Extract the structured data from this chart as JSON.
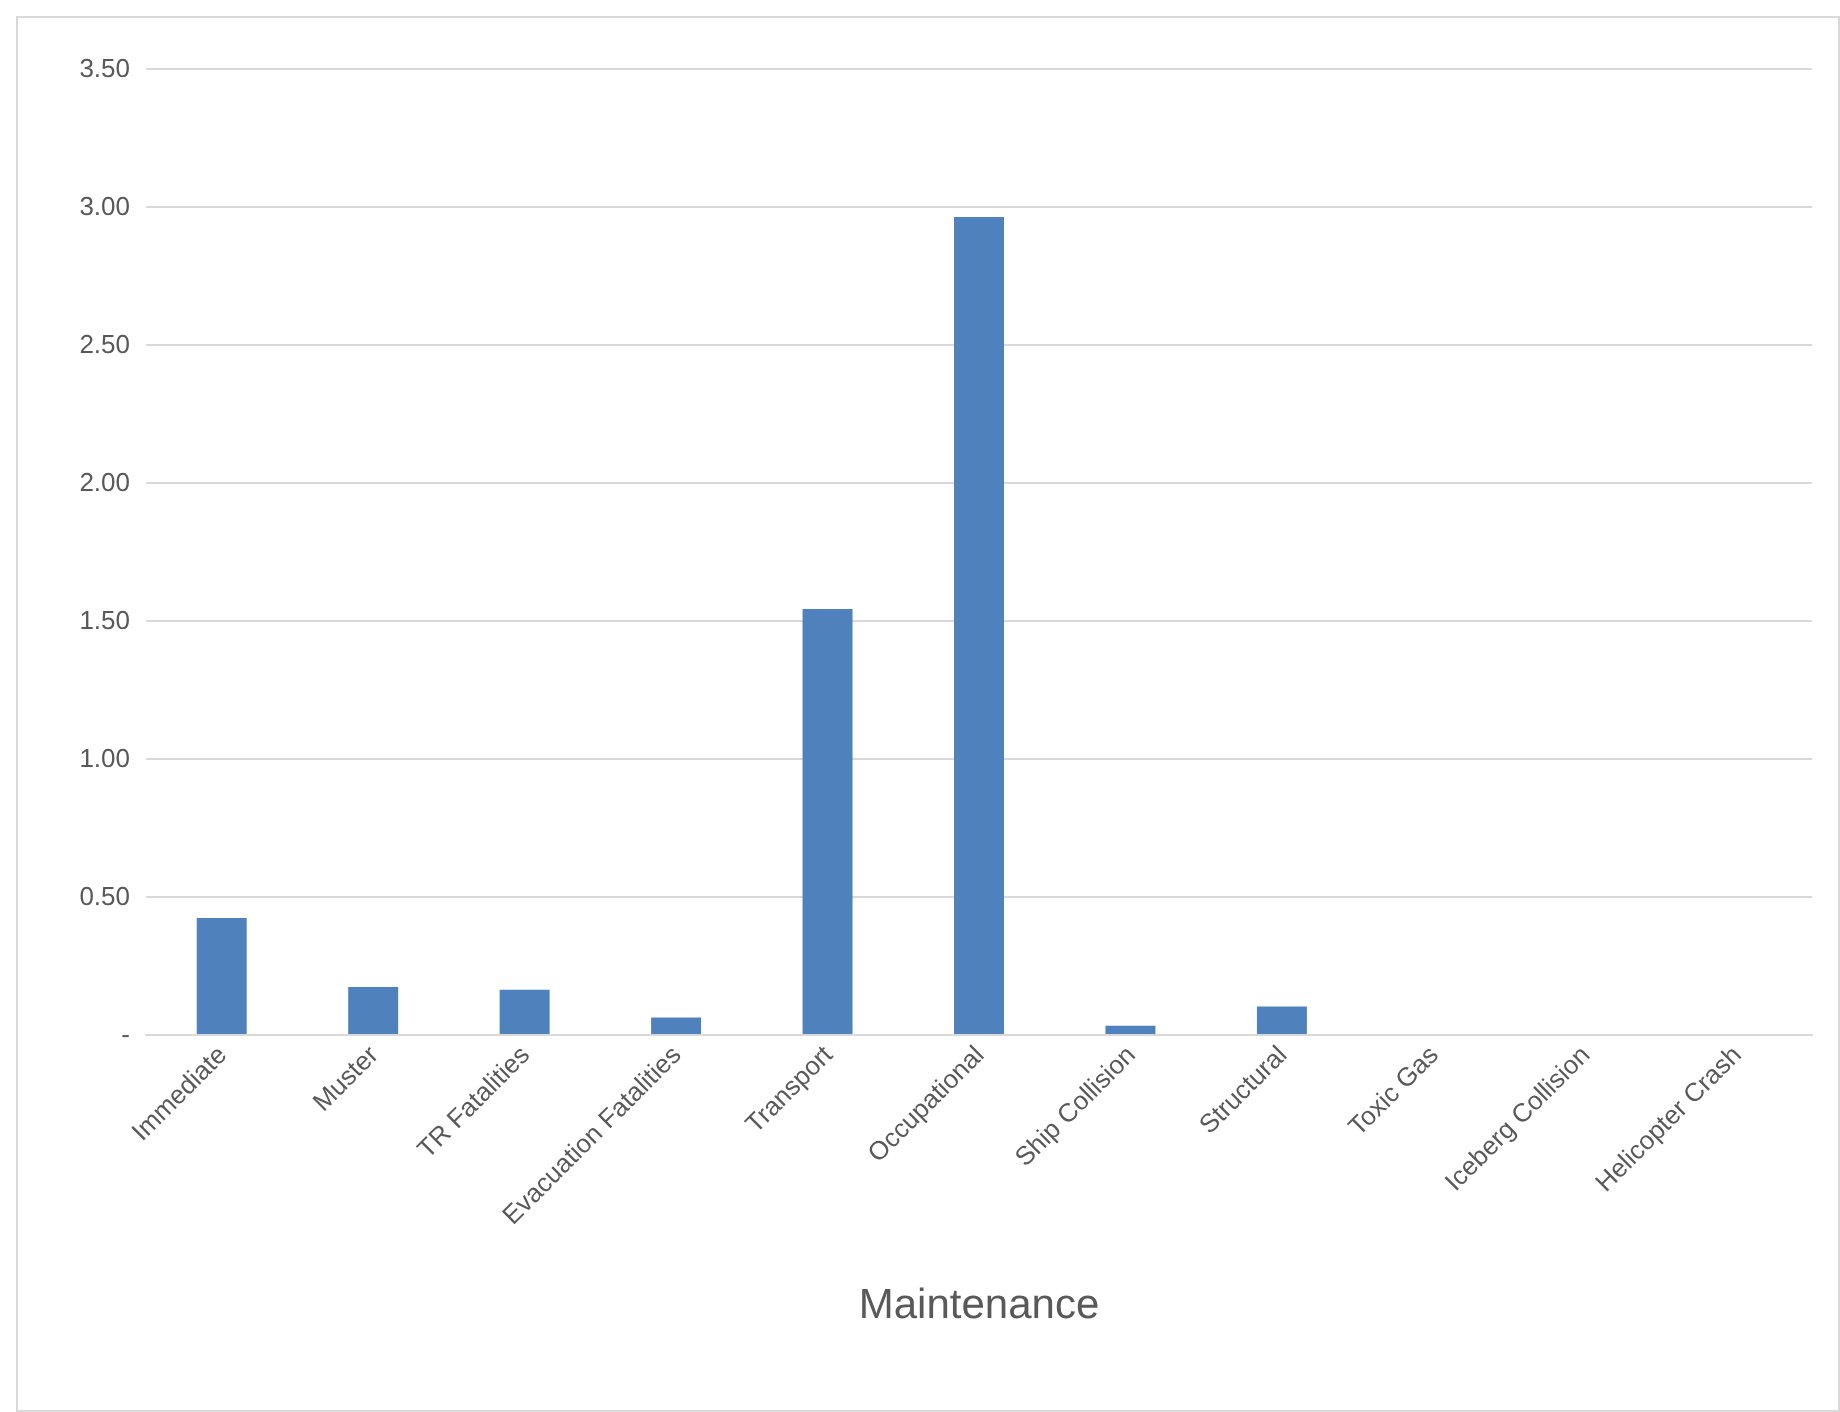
{
  "chart_data": {
    "type": "bar",
    "xlabel": "Maintenance",
    "categories": [
      "Immediate",
      "Muster",
      "TR Fatalities",
      "Evacuation Fatalities",
      "Transport",
      "Occupational",
      "Ship Collision",
      "Structural",
      "Toxic Gas",
      "Iceberg Collision",
      "Helicopter Crash"
    ],
    "values": [
      0.42,
      0.17,
      0.16,
      0.06,
      1.54,
      2.96,
      0.03,
      0.1,
      0,
      0,
      0
    ],
    "color": "#4f81bd",
    "ylim": [
      0,
      3.5
    ],
    "yticks": [
      {
        "value": 0,
        "label": "-"
      },
      {
        "value": 0.5,
        "label": "0.50"
      },
      {
        "value": 1,
        "label": "1.00"
      },
      {
        "value": 1.5,
        "label": "1.50"
      },
      {
        "value": 2,
        "label": "2.00"
      },
      {
        "value": 2.5,
        "label": "2.50"
      },
      {
        "value": 3,
        "label": "3.00"
      },
      {
        "value": 3.5,
        "label": "3.50"
      }
    ],
    "grid": "y"
  }
}
